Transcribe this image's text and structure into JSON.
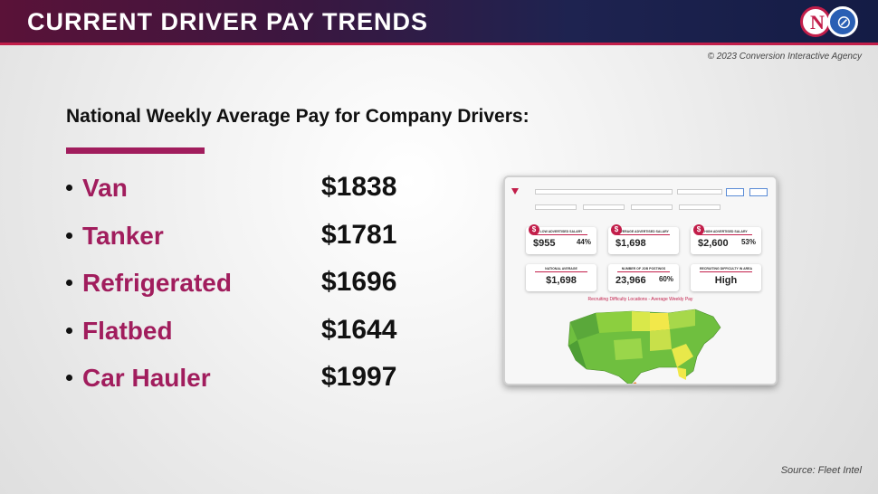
{
  "header": {
    "title": "CURRENT DRIVER PAY TRENDS",
    "copyright": "© 2023 Conversion Interactive Agency"
  },
  "main": {
    "subtitle": "National Weekly Average Pay for Company Drivers:",
    "rows": [
      {
        "vehicle": "Van",
        "amount": "$1838"
      },
      {
        "vehicle": "Tanker",
        "amount": "$1781"
      },
      {
        "vehicle": "Refrigerated",
        "amount": "$1696"
      },
      {
        "vehicle": "Flatbed",
        "amount": "$1644"
      },
      {
        "vehicle": "Car Hauler",
        "amount": "$1997"
      }
    ]
  },
  "dashboard": {
    "cards": [
      {
        "title": "LOW ADVERTISED SALARY",
        "value": "$955",
        "pct": "44%"
      },
      {
        "title": "AVERAGE ADVERTISED SALARY",
        "value": "$1,698",
        "pct": ""
      },
      {
        "title": "HIGH ADVERTISED SALARY",
        "value": "$2,600",
        "pct": "53%"
      },
      {
        "title": "NATIONAL AVERAGE",
        "value": "$1,698",
        "pct": ""
      },
      {
        "title": "NUMBER OF JOB POSTINGS",
        "value": "23,966",
        "pct": "60%"
      },
      {
        "title": "RECRUITING DIFFICULTY IN AREA",
        "value": "High",
        "pct": ""
      }
    ],
    "map_title": "Recruiting Difficulty Locations - Average Weekly Pay"
  },
  "footer": {
    "source": "Source: Fleet Intel"
  }
}
